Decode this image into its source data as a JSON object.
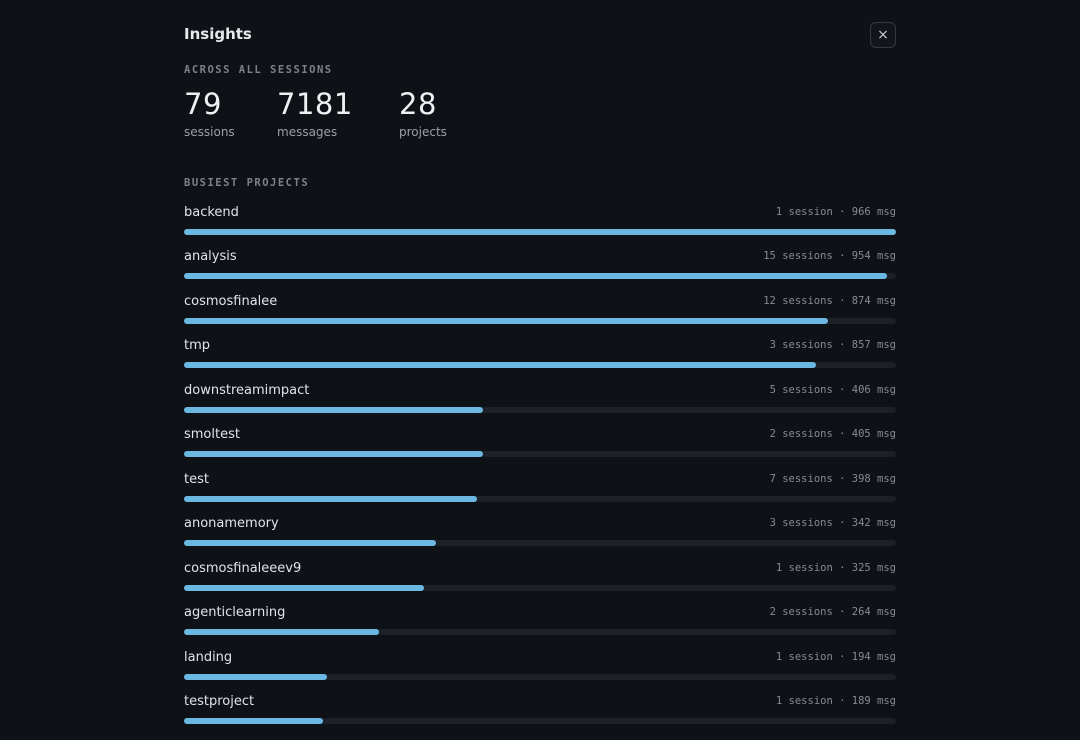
{
  "header": {
    "title": "Insights",
    "close": "×"
  },
  "summary": {
    "label": "ACROSS ALL SESSIONS",
    "stats": [
      {
        "value": 79,
        "label": "sessions"
      },
      {
        "value": 7181,
        "label": "messages"
      },
      {
        "value": 28,
        "label": "projects"
      }
    ]
  },
  "projects": {
    "label": "BUSIEST PROJECTS",
    "rows": [
      {
        "name": "backend",
        "meta": "1 session · 966 msg",
        "messages": 966
      },
      {
        "name": "analysis",
        "meta": "15 sessions · 954 msg",
        "messages": 954
      },
      {
        "name": "cosmosfinalee",
        "meta": "12 sessions · 874 msg",
        "messages": 874
      },
      {
        "name": "tmp",
        "meta": "3 sessions · 857 msg",
        "messages": 857
      },
      {
        "name": "downstreamimpact",
        "meta": "5 sessions · 406 msg",
        "messages": 406
      },
      {
        "name": "smoltest",
        "meta": "2 sessions · 405 msg",
        "messages": 405
      },
      {
        "name": "test",
        "meta": "7 sessions · 398 msg",
        "messages": 398
      },
      {
        "name": "anonamemory",
        "meta": "3 sessions · 342 msg",
        "messages": 342
      },
      {
        "name": "cosmosfinaleeev9",
        "meta": "1 session · 325 msg",
        "messages": 325
      },
      {
        "name": "agenticlearning",
        "meta": "2 sessions · 264 msg",
        "messages": 264
      },
      {
        "name": "landing",
        "meta": "1 session · 194 msg",
        "messages": 194
      },
      {
        "name": "testproject",
        "meta": "1 session · 189 msg",
        "messages": 189
      }
    ]
  }
}
